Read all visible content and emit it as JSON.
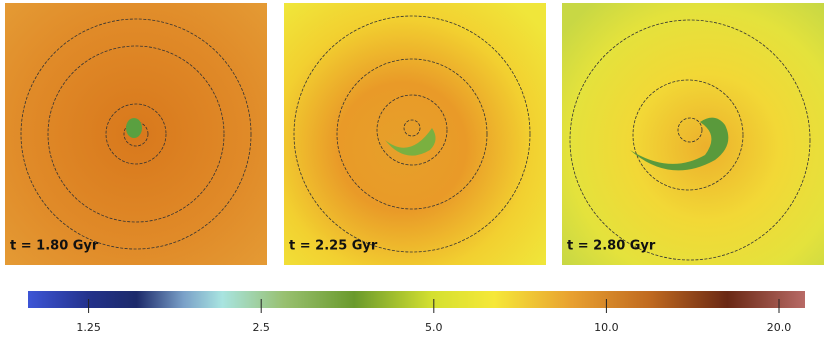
{
  "panels": [
    {
      "label": "t = 1.80 Gyr"
    },
    {
      "label": "t = 2.25 Gyr"
    },
    {
      "label": "t = 2.80 Gyr"
    }
  ],
  "colorbar": {
    "type": "colorbar",
    "scale": "log",
    "xlim": [
      0.98,
      22.2
    ],
    "xticks": [
      1.25,
      2.5,
      {
        "value": 5,
        "label": "5.0"
      },
      {
        "value": 10,
        "label": "10.0"
      },
      {
        "value": 20,
        "label": "20.0"
      }
    ]
  }
}
